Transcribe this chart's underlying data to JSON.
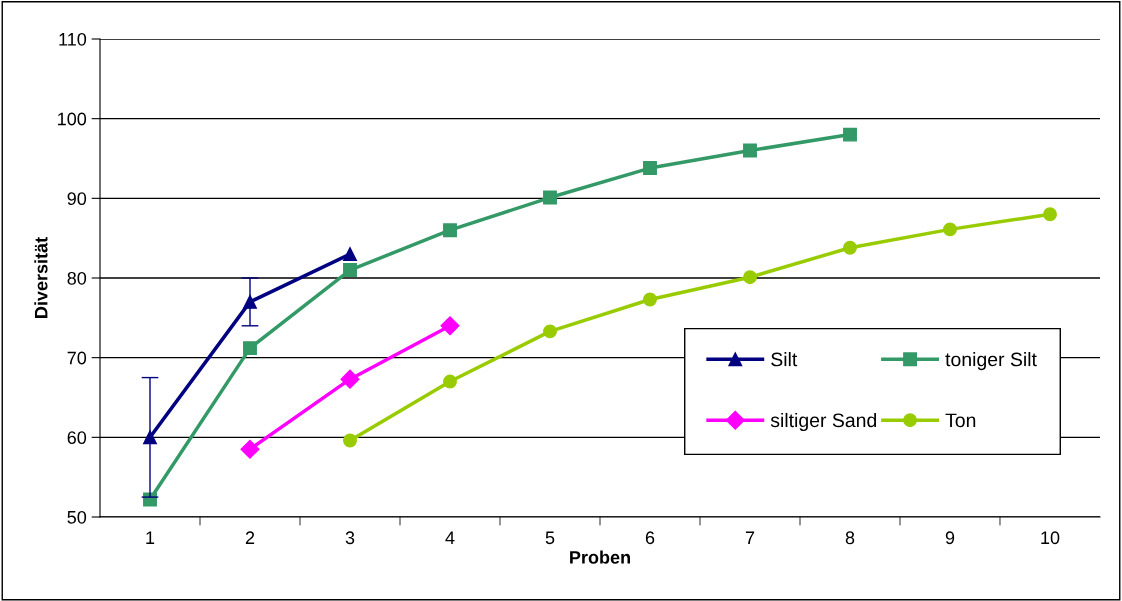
{
  "chart_data": {
    "type": "line",
    "xlabel": "Proben",
    "ylabel": "Diversität",
    "categories": [
      "1",
      "2",
      "3",
      "4",
      "5",
      "6",
      "7",
      "8",
      "9",
      "10"
    ],
    "series": [
      {
        "name": "Silt",
        "color": "#000080",
        "marker": "triangle",
        "values": [
          60,
          77,
          83,
          null,
          null,
          null,
          null,
          null,
          null,
          null
        ],
        "errors": [
          [
            52.5,
            67.5
          ],
          [
            74,
            80
          ],
          null,
          null,
          null,
          null,
          null,
          null,
          null,
          null
        ]
      },
      {
        "name": "toniger Silt",
        "color": "#339966",
        "marker": "square",
        "values": [
          52.2,
          71.2,
          81,
          86,
          90.1,
          93.8,
          96,
          98,
          null,
          null
        ]
      },
      {
        "name": "siltiger Sand",
        "color": "#ff00ff",
        "marker": "diamond",
        "values": [
          null,
          58.5,
          67.3,
          74,
          null,
          null,
          null,
          null,
          null,
          null
        ]
      },
      {
        "name": "Ton",
        "color": "#99cc00",
        "marker": "circle",
        "values": [
          null,
          null,
          59.6,
          67,
          73.3,
          77.3,
          80.1,
          83.8,
          86.1,
          88
        ]
      }
    ],
    "ylim": [
      50,
      110
    ],
    "yticks": [
      50,
      60,
      70,
      80,
      90,
      100,
      110
    ],
    "grid": "y",
    "legend": "right",
    "line_style": "solid"
  }
}
